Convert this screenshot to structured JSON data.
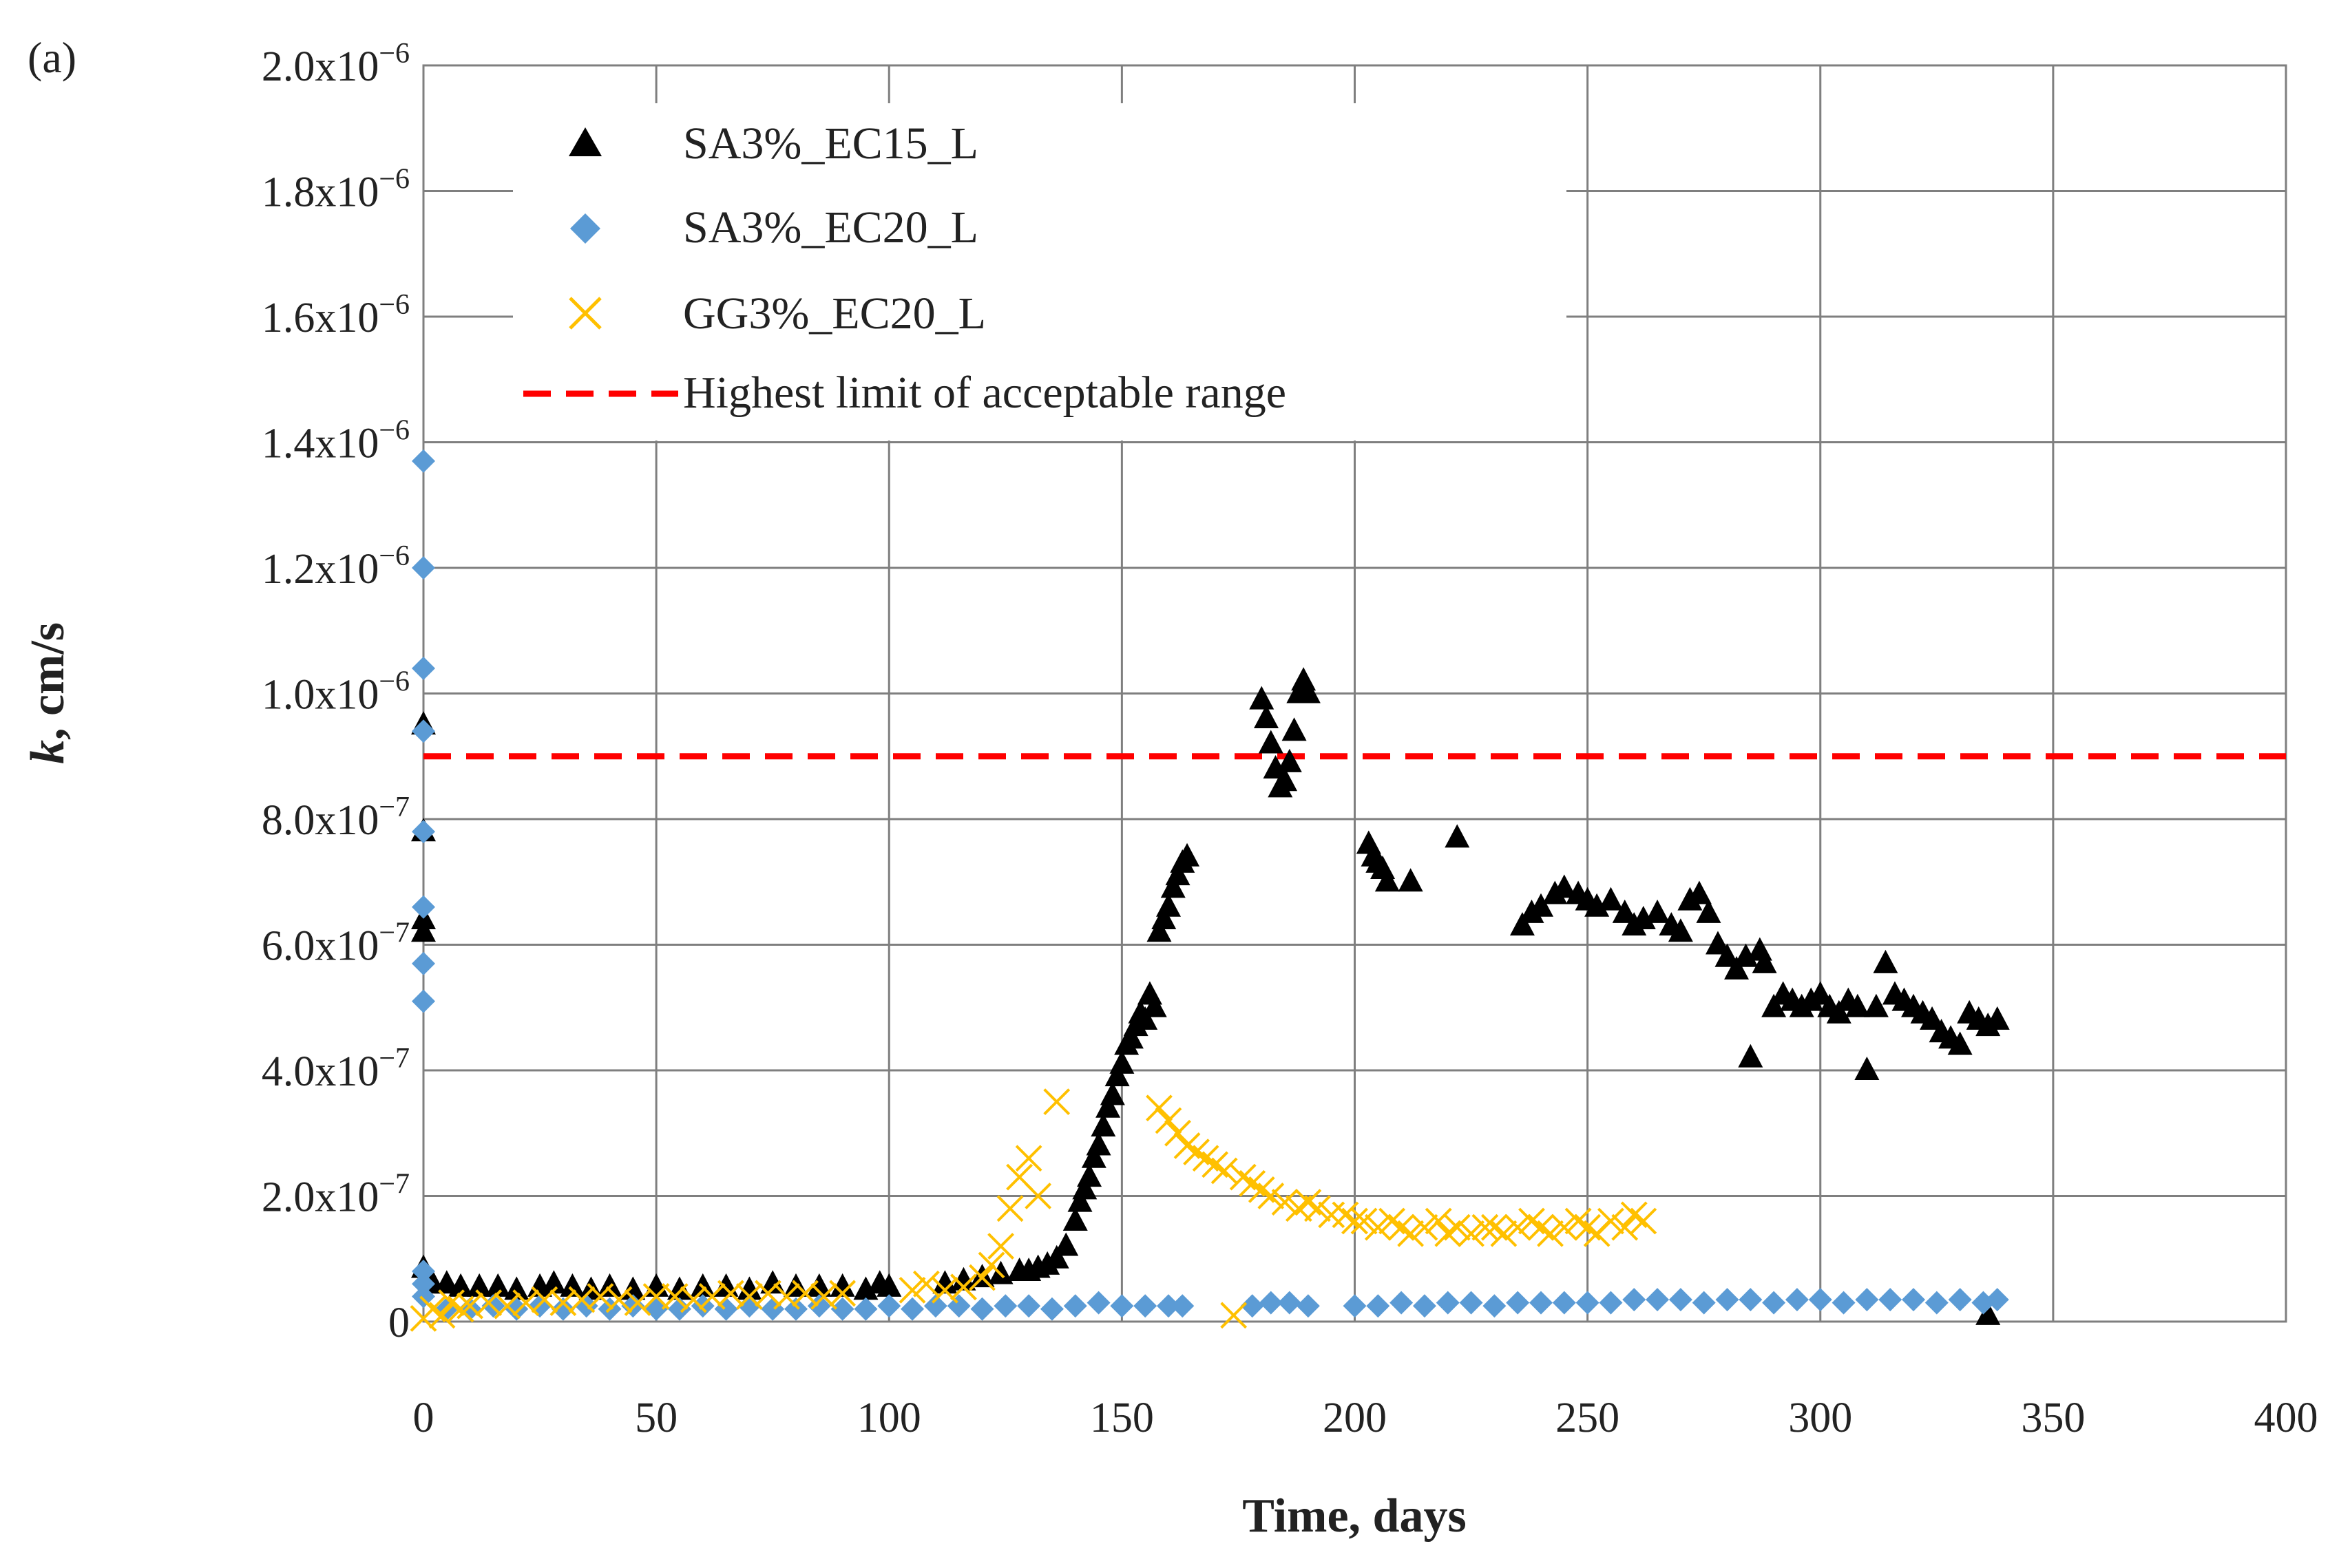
{
  "chart_data": {
    "type": "scatter",
    "panel_label": "(a)",
    "title": "",
    "xlabel": "Time, days",
    "ylabel_italic": "k",
    "ylabel_rest": ", cm/s",
    "xlim": [
      0,
      400
    ],
    "ylim": [
      0,
      2e-06
    ],
    "grid": true,
    "legend_position": "top-left",
    "x_ticks": [
      {
        "value": 0,
        "label": "0"
      },
      {
        "value": 50,
        "label": "50"
      },
      {
        "value": 100,
        "label": "100"
      },
      {
        "value": 150,
        "label": "150"
      },
      {
        "value": 200,
        "label": "200"
      },
      {
        "value": 250,
        "label": "250"
      },
      {
        "value": 300,
        "label": "300"
      },
      {
        "value": 350,
        "label": "350"
      },
      {
        "value": 400,
        "label": "400"
      }
    ],
    "y_ticks": [
      {
        "value": 0,
        "mant": "0",
        "exp": ""
      },
      {
        "value": 2e-07,
        "mant": "2.0x10",
        "exp": "−7"
      },
      {
        "value": 4e-07,
        "mant": "4.0x10",
        "exp": "−7"
      },
      {
        "value": 6e-07,
        "mant": "6.0x10",
        "exp": "−7"
      },
      {
        "value": 8e-07,
        "mant": "8.0x10",
        "exp": "−7"
      },
      {
        "value": 1e-06,
        "mant": "1.0x10",
        "exp": "−6"
      },
      {
        "value": 1.2e-06,
        "mant": "1.2x10",
        "exp": "−6"
      },
      {
        "value": 1.4e-06,
        "mant": "1.4x10",
        "exp": "−6"
      },
      {
        "value": 1.6e-06,
        "mant": "1.6x10",
        "exp": "−6"
      },
      {
        "value": 1.8e-06,
        "mant": "1.8x10",
        "exp": "−6"
      },
      {
        "value": 2e-06,
        "mant": "2.0x10",
        "exp": "−6"
      }
    ],
    "reference_line": {
      "name": "Highest limit of acceptable range",
      "y": 9e-07,
      "color": "#ff0000"
    },
    "series": [
      {
        "name": "SA3%_EC15_L",
        "marker": "triangle",
        "color": "#000000",
        "x": [
          0,
          0,
          0,
          0,
          0,
          2,
          5,
          8,
          12,
          16,
          20,
          25,
          28,
          32,
          36,
          40,
          45,
          50,
          55,
          60,
          65,
          70,
          75,
          80,
          85,
          90,
          95,
          98,
          100,
          112,
          116,
          120,
          124,
          128,
          130,
          132,
          134,
          136,
          138,
          140,
          141,
          142,
          143,
          144,
          145,
          146,
          147,
          148,
          149,
          150,
          151,
          152,
          153,
          154,
          155,
          156,
          157,
          158,
          159,
          160,
          161,
          162,
          163,
          164,
          180,
          181,
          182,
          183,
          184,
          185,
          186,
          187,
          188,
          189,
          190,
          203,
          204,
          205,
          206,
          207,
          212,
          222,
          236,
          238,
          240,
          243,
          245,
          248,
          250,
          252,
          255,
          258,
          260,
          262,
          265,
          268,
          270,
          272,
          274,
          276,
          278,
          280,
          282,
          284,
          285,
          287,
          288,
          290,
          292,
          294,
          296,
          298,
          300,
          302,
          304,
          306,
          308,
          310,
          312,
          314,
          316,
          318,
          320,
          322,
          324,
          326,
          328,
          330,
          332,
          334,
          336,
          338,
          336
        ],
        "y": [
          6.2e-07,
          6.4e-07,
          7.8e-07,
          9.5e-07,
          8.5e-08,
          6e-08,
          6e-08,
          5.5e-08,
          5.5e-08,
          5.5e-08,
          5e-08,
          5.5e-08,
          6e-08,
          5.5e-08,
          5e-08,
          5.5e-08,
          5e-08,
          5.5e-08,
          5e-08,
          5.5e-08,
          5.5e-08,
          5e-08,
          6e-08,
          5.5e-08,
          5.5e-08,
          5.5e-08,
          5e-08,
          6e-08,
          5.5e-08,
          6e-08,
          6.5e-08,
          7e-08,
          7.5e-08,
          8e-08,
          8e-08,
          8.5e-08,
          9e-08,
          1e-07,
          1.2e-07,
          1.6e-07,
          1.9e-07,
          2.1e-07,
          2.3e-07,
          2.6e-07,
          2.8e-07,
          3.1e-07,
          3.4e-07,
          3.6e-07,
          3.9e-07,
          4.1e-07,
          4.4e-07,
          4.5e-07,
          4.7e-07,
          4.9e-07,
          4.8e-07,
          5.2e-07,
          5e-07,
          6.2e-07,
          6.4e-07,
          6.6e-07,
          6.9e-07,
          7.1e-07,
          7.3e-07,
          7.4e-07,
          9.9e-07,
          9.6e-07,
          9.2e-07,
          8.8e-07,
          8.5e-07,
          8.6e-07,
          8.9e-07,
          9.4e-07,
          1e-06,
          1.02e-06,
          1e-06,
          7.6e-07,
          7.4e-07,
          7.3e-07,
          7.2e-07,
          7e-07,
          7e-07,
          7.7e-07,
          6.3e-07,
          6.5e-07,
          6.6e-07,
          6.8e-07,
          6.9e-07,
          6.8e-07,
          6.7e-07,
          6.6e-07,
          6.7e-07,
          6.5e-07,
          6.3e-07,
          6.4e-07,
          6.5e-07,
          6.3e-07,
          6.2e-07,
          6.7e-07,
          6.8e-07,
          6.5e-07,
          6e-07,
          5.8e-07,
          5.6e-07,
          5.8e-07,
          4.2e-07,
          5.9e-07,
          5.7e-07,
          5e-07,
          5.2e-07,
          5.1e-07,
          5e-07,
          5.1e-07,
          5.2e-07,
          5e-07,
          4.9e-07,
          5.1e-07,
          5e-07,
          4e-07,
          5e-07,
          5.7e-07,
          5.2e-07,
          5.1e-07,
          5e-07,
          4.9e-07,
          4.8e-07,
          4.6e-07,
          4.5e-07,
          4.4e-07,
          4.9e-07,
          4.8e-07,
          4.7e-07,
          4.8e-07,
          1e-08
        ]
      },
      {
        "name": "SA3%_EC20_L",
        "marker": "diamond",
        "color": "#5b9bd5",
        "x": [
          0,
          0,
          0,
          0,
          0,
          0,
          0,
          0,
          0,
          0,
          0,
          5,
          10,
          15,
          20,
          25,
          30,
          35,
          40,
          45,
          50,
          55,
          60,
          65,
          70,
          75,
          80,
          85,
          90,
          95,
          100,
          105,
          110,
          115,
          120,
          125,
          130,
          135,
          140,
          145,
          150,
          155,
          160,
          163,
          178,
          182,
          186,
          190,
          200,
          205,
          210,
          215,
          220,
          225,
          230,
          235,
          240,
          245,
          250,
          255,
          260,
          265,
          270,
          275,
          280,
          285,
          290,
          295,
          300,
          305,
          310,
          315,
          320,
          325,
          330,
          335,
          338
        ],
        "y": [
          1.37e-06,
          1.2e-06,
          1.04e-06,
          9.4e-07,
          7.8e-07,
          6.6e-07,
          5.7e-07,
          5.1e-07,
          8e-08,
          6e-08,
          4e-08,
          2e-08,
          2e-08,
          2.5e-08,
          2e-08,
          2.5e-08,
          2e-08,
          2.5e-08,
          2e-08,
          2.5e-08,
          2e-08,
          2e-08,
          2.5e-08,
          2e-08,
          2.5e-08,
          2e-08,
          2e-08,
          2.5e-08,
          2e-08,
          2e-08,
          2.5e-08,
          2e-08,
          2.5e-08,
          2.5e-08,
          2e-08,
          2.5e-08,
          2.5e-08,
          2e-08,
          2.5e-08,
          3e-08,
          2.5e-08,
          2.5e-08,
          2.5e-08,
          2.5e-08,
          2.5e-08,
          3e-08,
          3e-08,
          2.5e-08,
          2.5e-08,
          2.5e-08,
          3e-08,
          2.5e-08,
          3e-08,
          3e-08,
          2.5e-08,
          3e-08,
          3e-08,
          3e-08,
          3e-08,
          3e-08,
          3.5e-08,
          3.5e-08,
          3.5e-08,
          3e-08,
          3.5e-08,
          3.5e-08,
          3e-08,
          3.5e-08,
          3.5e-08,
          3e-08,
          3.5e-08,
          3.5e-08,
          3.5e-08,
          3e-08,
          3.5e-08,
          3e-08,
          3.5e-08
        ]
      },
      {
        "name": "GG3%_EC20_L",
        "marker": "x",
        "color": "#ffc000",
        "x": [
          0,
          2,
          4,
          6,
          8,
          10,
          14,
          18,
          22,
          26,
          30,
          34,
          38,
          42,
          46,
          50,
          54,
          58,
          62,
          66,
          70,
          74,
          78,
          82,
          86,
          90,
          105,
          108,
          112,
          116,
          120,
          122,
          124,
          126,
          128,
          130,
          132,
          136,
          158,
          160,
          162,
          164,
          166,
          168,
          170,
          172,
          174,
          176,
          178,
          180,
          182,
          185,
          188,
          190,
          192,
          195,
          198,
          200,
          202,
          205,
          208,
          210,
          212,
          215,
          218,
          220,
          222,
          225,
          228,
          230,
          232,
          235,
          238,
          240,
          242,
          245,
          248,
          250,
          252,
          255,
          258,
          260,
          262
        ],
        "y": [
          5e-09,
          2e-08,
          1e-08,
          3e-08,
          2e-08,
          2.5e-08,
          3e-08,
          2.5e-08,
          3e-08,
          3.5e-08,
          3e-08,
          3.5e-08,
          4e-08,
          3.5e-08,
          3e-08,
          4e-08,
          4e-08,
          3.5e-08,
          4e-08,
          4.5e-08,
          4e-08,
          4.5e-08,
          4e-08,
          4.5e-08,
          4e-08,
          4.5e-08,
          5e-08,
          6e-08,
          5e-08,
          5.5e-08,
          7e-08,
          9e-08,
          1.2e-07,
          1.8e-07,
          2.3e-07,
          2.6e-07,
          2e-07,
          3.5e-07,
          3.4e-07,
          3.2e-07,
          3e-07,
          2.8e-07,
          2.7e-07,
          2.6e-07,
          2.5e-07,
          2.4e-07,
          1e-08,
          2.3e-07,
          2.2e-07,
          2.1e-07,
          2e-07,
          1.9e-07,
          1.8e-07,
          1.9e-07,
          1.8e-07,
          1.7e-07,
          1.7e-07,
          1.6e-07,
          1.6e-07,
          1.5e-07,
          1.6e-07,
          1.5e-07,
          1.4e-07,
          1.5e-07,
          1.6e-07,
          1.4e-07,
          1.5e-07,
          1.4e-07,
          1.5e-07,
          1.5e-07,
          1.4e-07,
          1.5e-07,
          1.6e-07,
          1.5e-07,
          1.4e-07,
          1.5e-07,
          1.6e-07,
          1.5e-07,
          1.4e-07,
          1.6e-07,
          1.5e-07,
          1.7e-07,
          1.6e-07
        ]
      }
    ]
  }
}
